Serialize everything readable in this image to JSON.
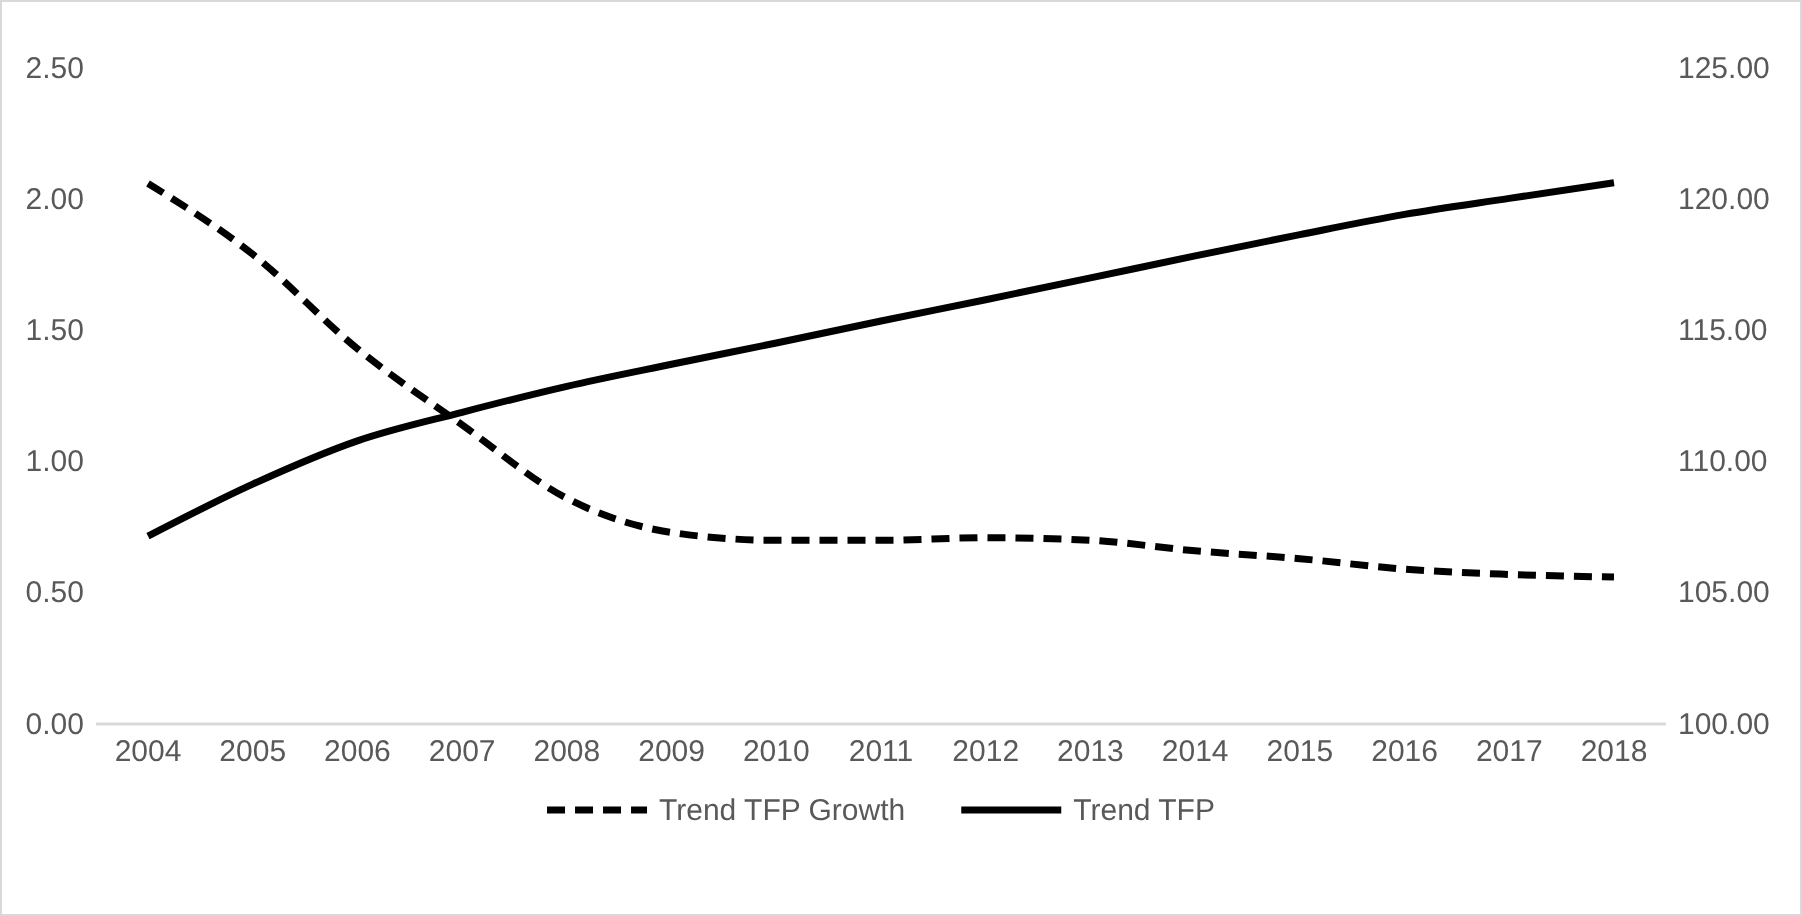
{
  "chart_data": {
    "type": "line",
    "categories": [
      "2004",
      "2005",
      "2006",
      "2007",
      "2008",
      "2009",
      "2010",
      "2011",
      "2012",
      "2013",
      "2014",
      "2015",
      "2016",
      "2017",
      "2018"
    ],
    "series": [
      {
        "name": "Trend TFP Growth",
        "color": "#000000",
        "line_style": "dashed",
        "values": [
          2.06,
          1.79,
          1.43,
          1.14,
          0.86,
          0.73,
          0.7,
          0.7,
          0.71,
          0.7,
          0.66,
          0.63,
          0.59,
          0.57,
          0.56
        ]
      },
      {
        "name": "Trend TFP",
        "color": "#000000",
        "line_style": "solid",
        "axis": "y2",
        "values": [
          107.16,
          109.14,
          110.79,
          111.88,
          112.87,
          113.71,
          114.52,
          115.36,
          116.17,
          117.0,
          117.84,
          118.65,
          119.42,
          120.03,
          120.63
        ]
      }
    ],
    "ylim": [
      0,
      2.5
    ],
    "yticks": [
      {
        "value": 0,
        "label": "0.00"
      },
      {
        "value": 0.5,
        "label": "0.50"
      },
      {
        "value": 1,
        "label": "1.00"
      },
      {
        "value": 1.5,
        "label": "1.50"
      },
      {
        "value": 2,
        "label": "2.00"
      },
      {
        "value": 2.5,
        "label": "2.50"
      }
    ],
    "y2lim": [
      100,
      125
    ],
    "y2ticks": [
      {
        "value": 100,
        "label": "100.00"
      },
      {
        "value": 105,
        "label": "105.00"
      },
      {
        "value": 110,
        "label": "110.00"
      },
      {
        "value": 115,
        "label": "115.00"
      },
      {
        "value": 120,
        "label": "120.00"
      },
      {
        "value": 125,
        "label": "125.00"
      }
    ],
    "grid": false,
    "legend": "bottom",
    "marker": "none"
  }
}
